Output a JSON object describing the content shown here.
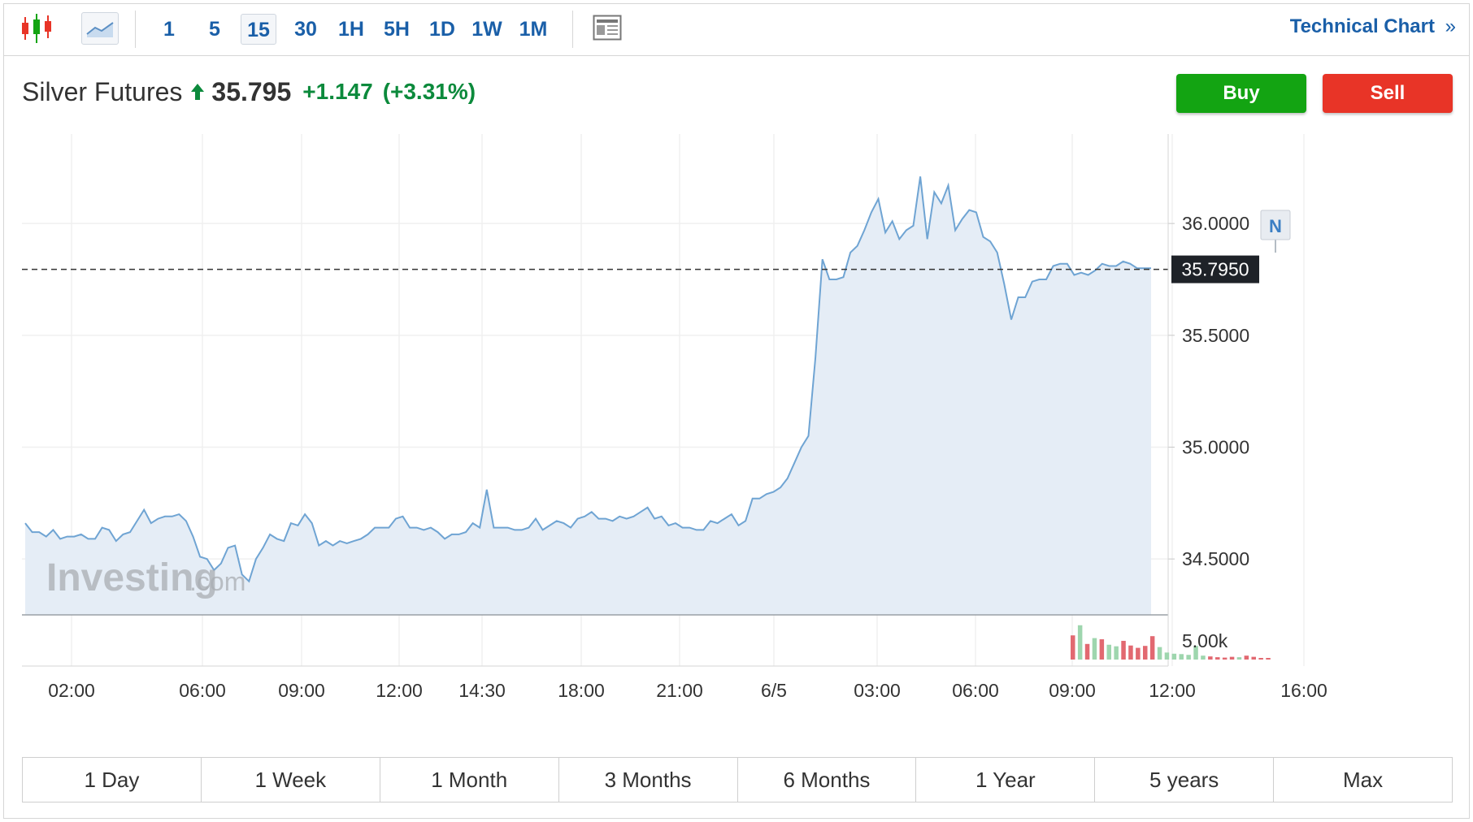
{
  "toolbar": {
    "chart_type_icons": [
      "candlestick-icon",
      "line-chart-icon"
    ],
    "intervals": [
      "1",
      "5",
      "15",
      "30",
      "1H",
      "5H",
      "1D",
      "1W",
      "1M"
    ],
    "active_interval": "15",
    "technical_link": "Technical Chart",
    "technical_link_icon": "double-chevron-right-icon"
  },
  "quote": {
    "name": "Silver Futures",
    "direction_icon": "arrow-up-icon",
    "price": "35.795",
    "change": "+1.147",
    "change_pct": "(+3.31%)",
    "up_color": "#0c8a3c"
  },
  "buttons": {
    "buy": "Buy",
    "sell": "Sell",
    "buy_color": "#13a412",
    "sell_color": "#e83427"
  },
  "watermark": {
    "brand": "Investing",
    "suffix": ".com"
  },
  "news_marker": "N",
  "ranges": [
    "1 Day",
    "1 Week",
    "1 Month",
    "3 Months",
    "6 Months",
    "1 Year",
    "5 years",
    "Max"
  ],
  "chart_data": {
    "type": "area",
    "title": "",
    "xlabel": "",
    "ylabel": "",
    "x_ticks": [
      "02:00",
      "06:00",
      "09:00",
      "12:00",
      "14:30",
      "18:00",
      "21:00",
      "6/5",
      "03:00",
      "06:00",
      "09:00",
      "12:00",
      "16:00"
    ],
    "y_ticks": [
      "36.0000",
      "35.5000",
      "35.0000",
      "34.5000"
    ],
    "ylim": [
      34.25,
      36.4
    ],
    "last_price_label": "35.7950",
    "last_price": 35.795,
    "line_color": "#6fa4d3",
    "fill_color": "#e5edf6",
    "values": [
      34.66,
      34.62,
      34.62,
      34.6,
      34.63,
      34.59,
      34.6,
      34.6,
      34.61,
      34.59,
      34.59,
      34.64,
      34.63,
      34.58,
      34.61,
      34.62,
      34.67,
      34.72,
      34.66,
      34.68,
      34.69,
      34.69,
      34.7,
      34.67,
      34.6,
      34.51,
      34.5,
      34.45,
      34.48,
      34.55,
      34.56,
      34.43,
      34.4,
      34.5,
      34.55,
      34.61,
      34.59,
      34.58,
      34.66,
      34.65,
      34.7,
      34.66,
      34.56,
      34.58,
      34.56,
      34.58,
      34.57,
      34.58,
      34.59,
      34.61,
      34.64,
      34.64,
      34.64,
      34.68,
      34.69,
      34.64,
      34.64,
      34.63,
      34.64,
      34.62,
      34.59,
      34.61,
      34.61,
      34.62,
      34.66,
      34.64,
      34.81,
      34.64,
      34.64,
      34.64,
      34.63,
      34.63,
      34.64,
      34.68,
      34.63,
      34.65,
      34.67,
      34.66,
      34.64,
      34.68,
      34.69,
      34.71,
      34.68,
      34.68,
      34.67,
      34.69,
      34.68,
      34.69,
      34.71,
      34.73,
      34.68,
      34.69,
      34.65,
      34.66,
      34.64,
      34.64,
      34.63,
      34.63,
      34.67,
      34.66,
      34.68,
      34.7,
      34.65,
      34.67,
      34.77,
      34.77,
      34.79,
      34.8,
      34.82,
      34.86,
      34.93,
      35.0,
      35.05,
      35.4,
      35.84,
      35.75,
      35.75,
      35.76,
      35.87,
      35.9,
      35.97,
      36.05,
      36.11,
      35.96,
      36.01,
      35.93,
      35.97,
      35.99,
      36.21,
      35.93,
      36.14,
      36.09,
      36.17,
      35.97,
      36.02,
      36.06,
      36.05,
      35.94,
      35.92,
      35.87,
      35.73,
      35.57,
      35.67,
      35.67,
      35.74,
      35.75,
      35.75,
      35.81,
      35.82,
      35.82,
      35.77,
      35.78,
      35.77,
      35.79,
      35.82,
      35.81,
      35.81,
      35.83,
      35.82,
      35.8,
      35.8,
      35.8
    ],
    "volume_label": "5.00k",
    "volume_up_color": "#9ed6ae",
    "volume_down_color": "#e26971",
    "volume": [
      {
        "v": 0.62,
        "up": false
      },
      {
        "v": 0.88,
        "up": true
      },
      {
        "v": 0.4,
        "up": false
      },
      {
        "v": 0.55,
        "up": true
      },
      {
        "v": 0.52,
        "up": false
      },
      {
        "v": 0.38,
        "up": true
      },
      {
        "v": 0.34,
        "up": true
      },
      {
        "v": 0.48,
        "up": false
      },
      {
        "v": 0.36,
        "up": false
      },
      {
        "v": 0.3,
        "up": false
      },
      {
        "v": 0.35,
        "up": false
      },
      {
        "v": 0.6,
        "up": false
      },
      {
        "v": 0.32,
        "up": true
      },
      {
        "v": 0.18,
        "up": true
      },
      {
        "v": 0.15,
        "up": true
      },
      {
        "v": 0.14,
        "up": true
      },
      {
        "v": 0.12,
        "up": true
      },
      {
        "v": 0.35,
        "up": true
      },
      {
        "v": 0.1,
        "up": true
      },
      {
        "v": 0.08,
        "up": false
      },
      {
        "v": 0.06,
        "up": false
      },
      {
        "v": 0.05,
        "up": false
      },
      {
        "v": 0.07,
        "up": false
      },
      {
        "v": 0.06,
        "up": true
      },
      {
        "v": 0.1,
        "up": false
      },
      {
        "v": 0.07,
        "up": false
      },
      {
        "v": 0.04,
        "up": false
      },
      {
        "v": 0.03,
        "up": false
      }
    ]
  }
}
